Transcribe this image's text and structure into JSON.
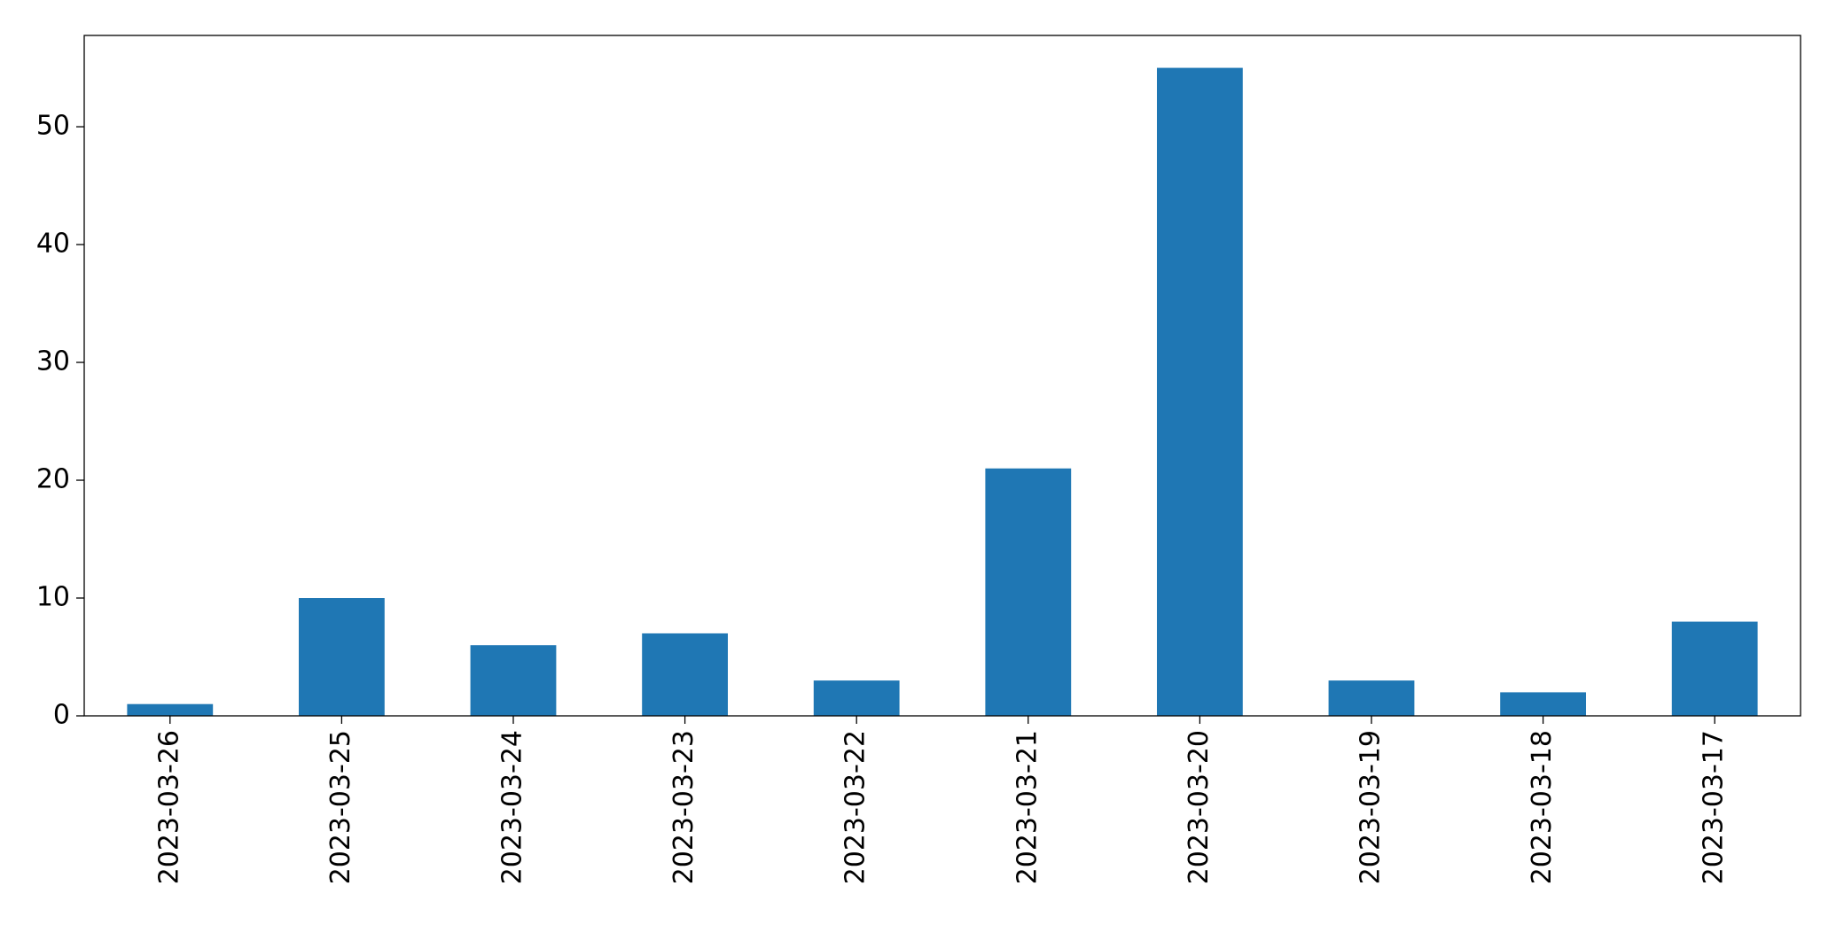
{
  "chart_data": {
    "type": "bar",
    "categories": [
      "2023-03-26",
      "2023-03-25",
      "2023-03-24",
      "2023-03-23",
      "2023-03-22",
      "2023-03-21",
      "2023-03-20",
      "2023-03-19",
      "2023-03-18",
      "2023-03-17"
    ],
    "values": [
      1,
      10,
      6,
      7,
      3,
      21,
      55,
      3,
      2,
      8
    ],
    "color": "#1f77b4",
    "ylim": [
      0,
      57.75
    ],
    "yticks": [
      0,
      10,
      20,
      30,
      40,
      50
    ],
    "grid": false
  }
}
